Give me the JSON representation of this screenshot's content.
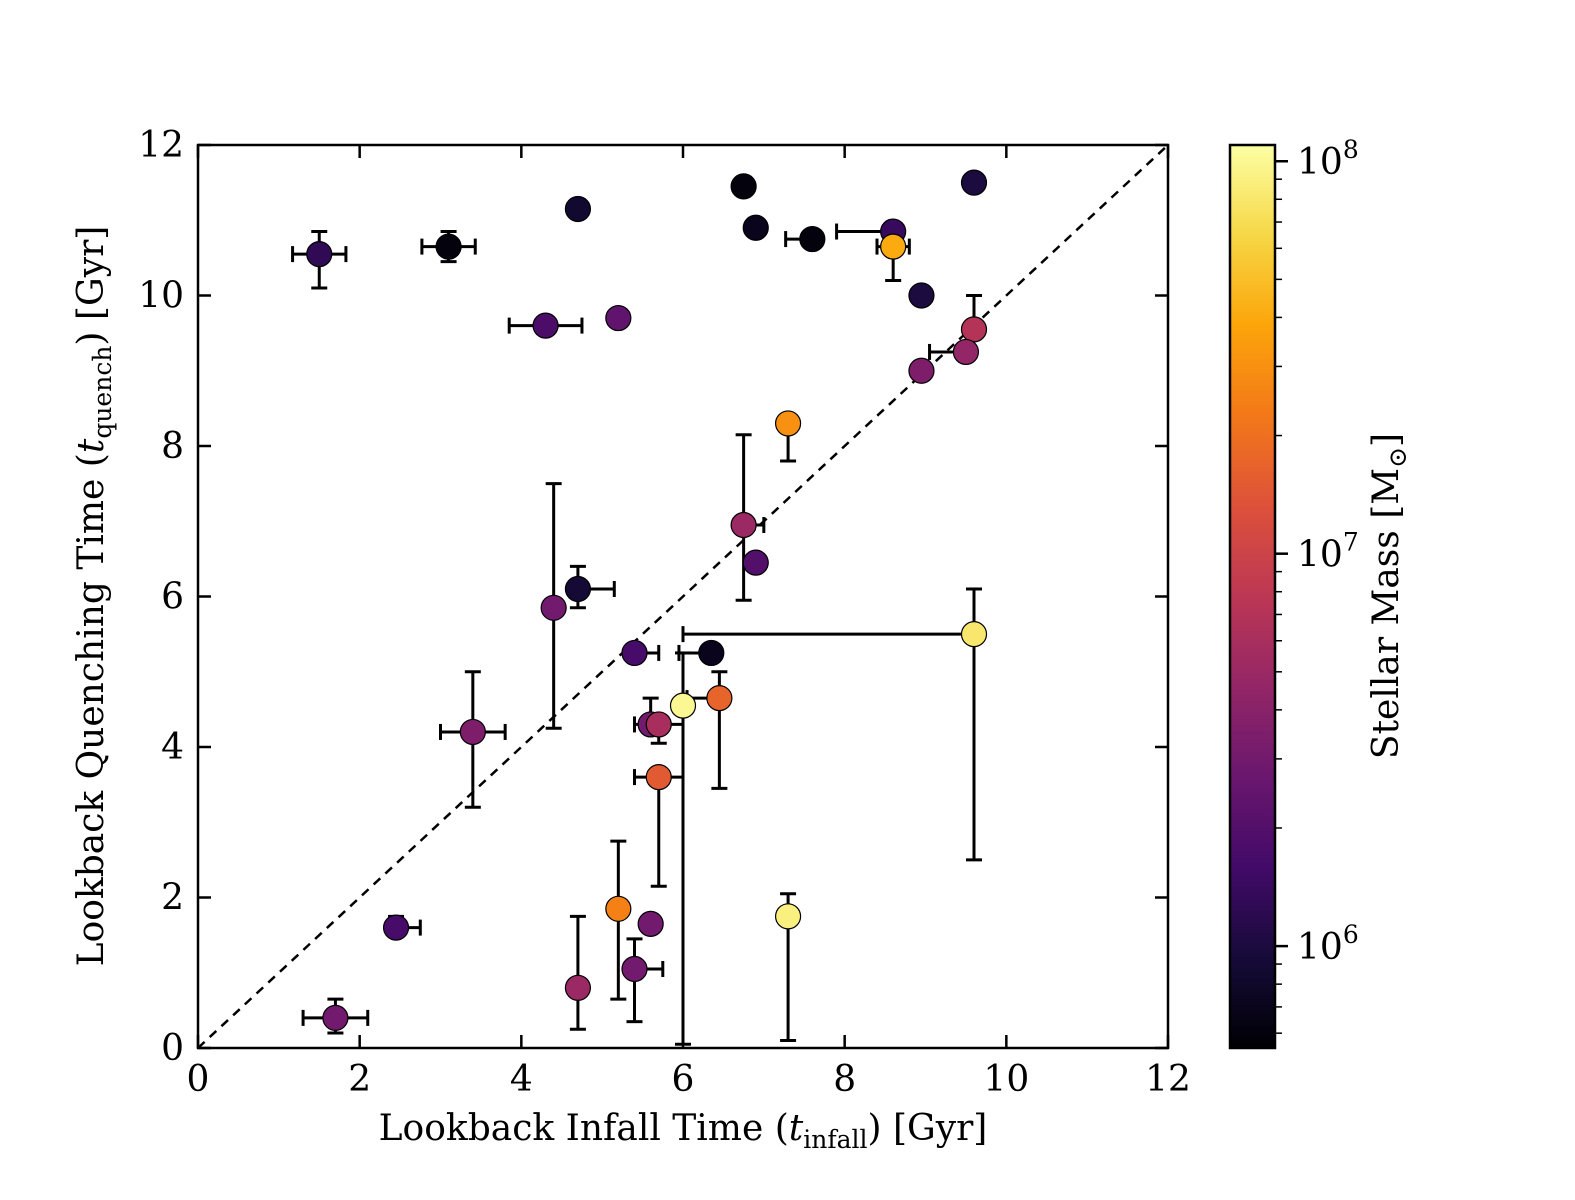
{
  "chart_data": {
    "type": "scatter",
    "xlabel": {
      "pre": "Lookback Infall Time (",
      "sym": "t",
      "sub": "infall",
      "post": ") [Gyr]"
    },
    "ylabel": {
      "pre": "Lookback Quenching Time (",
      "sym": "t",
      "sub": "quench",
      "post": ") [Gyr]"
    },
    "xlim": [
      0,
      12
    ],
    "ylim": [
      0,
      12
    ],
    "xticks": [
      "0",
      "2",
      "4",
      "6",
      "8",
      "10",
      "12"
    ],
    "yticks": [
      "0",
      "2",
      "4",
      "6",
      "8",
      "10",
      "12"
    ],
    "xtick_values": [
      0,
      2,
      4,
      6,
      8,
      10,
      12
    ],
    "ytick_values": [
      0,
      2,
      4,
      6,
      8,
      10,
      12
    ],
    "reference_line": "y = x (dashed)",
    "colorbar": {
      "label": "Stellar Mass [M⊙]",
      "label_text": "Stellar Mass [M",
      "label_end": "]",
      "scale": "log",
      "colormap": "inferno",
      "range": [
        550000,
        110000000
      ],
      "ticks": [
        {
          "base": "10",
          "exp": "6",
          "value": 1000000
        },
        {
          "base": "10",
          "exp": "7",
          "value": 10000000
        },
        {
          "base": "10",
          "exp": "8",
          "value": 100000000
        }
      ]
    },
    "points": [
      {
        "x": 1.5,
        "y": 10.55,
        "xerr": [
          0.33,
          0.33
        ],
        "yerr": [
          0.45,
          0.3
        ],
        "mass": 1300000
      },
      {
        "x": 3.1,
        "y": 10.65,
        "xerr": [
          0.33,
          0.33
        ],
        "yerr": [
          0.2,
          0.2
        ],
        "mass": 600000
      },
      {
        "x": 4.7,
        "y": 11.15,
        "xerr": [
          0.0,
          0.0
        ],
        "yerr": [
          0.0,
          0.12
        ],
        "mass": 850000
      },
      {
        "x": 6.75,
        "y": 11.45,
        "xerr": [
          0.0,
          0.0
        ],
        "yerr": [
          0.0,
          0.0
        ],
        "mass": 600000
      },
      {
        "x": 6.9,
        "y": 10.9,
        "xerr": [
          0.0,
          0.0
        ],
        "yerr": [
          0.0,
          0.0
        ],
        "mass": 700000
      },
      {
        "x": 7.6,
        "y": 10.75,
        "xerr": [
          0.33,
          0.0
        ],
        "yerr": [
          0.0,
          0.0
        ],
        "mass": 600000
      },
      {
        "x": 8.6,
        "y": 10.85,
        "xerr": [
          0.7,
          0.0
        ],
        "yerr": [
          0.0,
          0.0
        ],
        "mass": 1400000
      },
      {
        "x": 8.6,
        "y": 10.65,
        "xerr": [
          0.2,
          0.2
        ],
        "yerr": [
          0.45,
          0.0
        ],
        "mass": 40000000
      },
      {
        "x": 9.6,
        "y": 11.5,
        "xerr": [
          0.0,
          0.0
        ],
        "yerr": [
          0.0,
          0.0
        ],
        "mass": 1000000
      },
      {
        "x": 8.95,
        "y": 10.0,
        "xerr": [
          0.0,
          0.0
        ],
        "yerr": [
          0.0,
          0.0
        ],
        "mass": 1000000
      },
      {
        "x": 4.3,
        "y": 9.6,
        "xerr": [
          0.45,
          0.45
        ],
        "yerr": [
          0.0,
          0.0
        ],
        "mass": 1800000
      },
      {
        "x": 5.2,
        "y": 9.7,
        "xerr": [
          0.0,
          0.0
        ],
        "yerr": [
          0.0,
          0.0
        ],
        "mass": 2400000
      },
      {
        "x": 9.6,
        "y": 9.55,
        "xerr": [
          0.0,
          0.0
        ],
        "yerr": [
          0.0,
          0.45
        ],
        "mass": 7000000
      },
      {
        "x": 9.5,
        "y": 9.25,
        "xerr": [
          0.45,
          0.0
        ],
        "yerr": [
          0.0,
          0.0
        ],
        "mass": 4500000
      },
      {
        "x": 8.95,
        "y": 9.0,
        "xerr": [
          0.0,
          0.0
        ],
        "yerr": [
          0.0,
          0.0
        ],
        "mass": 3500000
      },
      {
        "x": 7.3,
        "y": 8.3,
        "xerr": [
          0.0,
          0.0
        ],
        "yerr": [
          0.5,
          0.0
        ],
        "mass": 30000000
      },
      {
        "x": 6.75,
        "y": 6.95,
        "xerr": [
          0.0,
          0.25
        ],
        "yerr": [
          1.0,
          1.2
        ],
        "mass": 5000000
      },
      {
        "x": 6.9,
        "y": 6.45,
        "xerr": [
          0.0,
          0.0
        ],
        "yerr": [
          0.0,
          0.0
        ],
        "mass": 2000000
      },
      {
        "x": 4.7,
        "y": 6.1,
        "xerr": [
          0.0,
          0.45
        ],
        "yerr": [
          0.25,
          0.3
        ],
        "mass": 900000
      },
      {
        "x": 4.4,
        "y": 5.85,
        "xerr": [
          0.0,
          0.0
        ],
        "yerr": [
          1.6,
          1.65
        ],
        "mass": 3000000
      },
      {
        "x": 5.4,
        "y": 5.25,
        "xerr": [
          0.0,
          0.3
        ],
        "yerr": [
          0.0,
          0.0
        ],
        "mass": 1700000
      },
      {
        "x": 6.35,
        "y": 5.25,
        "xerr": [
          0.4,
          0.0
        ],
        "yerr": [
          0.0,
          0.0
        ],
        "mass": 700000
      },
      {
        "x": 9.6,
        "y": 5.5,
        "xerr": [
          3.6,
          0.0
        ],
        "yerr": [
          3.0,
          0.6
        ],
        "mass": 80000000
      },
      {
        "x": 6.0,
        "y": 4.55,
        "xerr": [
          0.0,
          0.0
        ],
        "yerr": [
          4.5,
          0.7
        ],
        "mass": 100000000
      },
      {
        "x": 6.45,
        "y": 4.65,
        "xerr": [
          0.4,
          0.0
        ],
        "yerr": [
          1.2,
          0.35
        ],
        "mass": 17000000
      },
      {
        "x": 5.6,
        "y": 4.3,
        "xerr": [
          0.2,
          0.0
        ],
        "yerr": [
          0.0,
          0.35
        ],
        "mass": 3000000
      },
      {
        "x": 5.7,
        "y": 4.3,
        "xerr": [
          0.0,
          0.3
        ],
        "yerr": [
          0.25,
          0.0
        ],
        "mass": 6000000
      },
      {
        "x": 3.4,
        "y": 4.2,
        "xerr": [
          0.4,
          0.4
        ],
        "yerr": [
          1.0,
          0.8
        ],
        "mass": 3500000
      },
      {
        "x": 5.7,
        "y": 3.6,
        "xerr": [
          0.3,
          0.3
        ],
        "yerr": [
          1.45,
          0.0
        ],
        "mass": 15000000
      },
      {
        "x": 5.2,
        "y": 1.85,
        "xerr": [
          0.0,
          0.0
        ],
        "yerr": [
          1.2,
          0.9
        ],
        "mass": 25000000
      },
      {
        "x": 5.6,
        "y": 1.65,
        "xerr": [
          0.0,
          0.0
        ],
        "yerr": [
          0.0,
          0.0
        ],
        "mass": 3000000
      },
      {
        "x": 5.4,
        "y": 1.05,
        "xerr": [
          0.0,
          0.35
        ],
        "yerr": [
          0.7,
          0.4
        ],
        "mass": 3000000
      },
      {
        "x": 7.3,
        "y": 1.75,
        "xerr": [
          0.0,
          0.0
        ],
        "yerr": [
          1.65,
          0.3
        ],
        "mass": 90000000
      },
      {
        "x": 4.7,
        "y": 0.8,
        "xerr": [
          0.0,
          0.0
        ],
        "yerr": [
          0.55,
          0.95
        ],
        "mass": 5000000
      },
      {
        "x": 2.45,
        "y": 1.6,
        "xerr": [
          0.0,
          0.3
        ],
        "yerr": [
          0.0,
          0.15
        ],
        "mass": 1700000
      },
      {
        "x": 1.7,
        "y": 0.4,
        "xerr": [
          0.4,
          0.4
        ],
        "yerr": [
          0.2,
          0.25
        ],
        "mass": 3000000
      }
    ]
  }
}
